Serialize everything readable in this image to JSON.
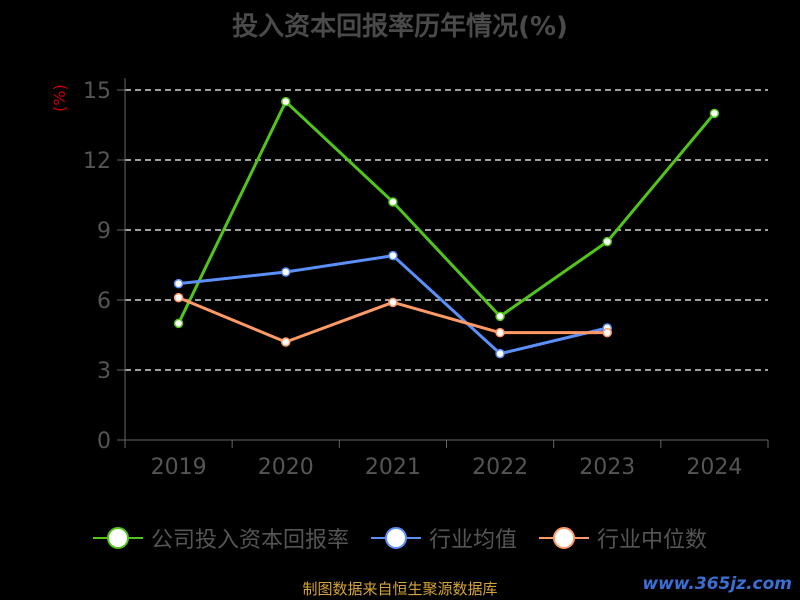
{
  "source_note": "制图数据来自恒生聚源数据库",
  "watermark": "www.365jz.com",
  "chart_data": {
    "type": "line",
    "title": "投入资本回报率历年情况(%)",
    "ylabel": "(%)",
    "xlabel": "",
    "categories": [
      "2019",
      "2020",
      "2021",
      "2022",
      "2023",
      "2024"
    ],
    "ylim": [
      0,
      15
    ],
    "yticks": [
      0,
      3,
      6,
      9,
      12,
      15
    ],
    "grid": true,
    "legend_position": "bottom",
    "series": [
      {
        "name": "公司投入资本回报率",
        "color": "#52c41a",
        "values": [
          5.0,
          14.5,
          10.2,
          5.3,
          8.5,
          14.0
        ]
      },
      {
        "name": "行业均值",
        "color": "#5b8ff9",
        "values": [
          6.7,
          7.2,
          7.9,
          3.7,
          4.8,
          null
        ]
      },
      {
        "name": "行业中位数",
        "color": "#ff9966",
        "values": [
          6.1,
          4.2,
          5.9,
          4.6,
          4.6,
          null
        ]
      }
    ]
  }
}
